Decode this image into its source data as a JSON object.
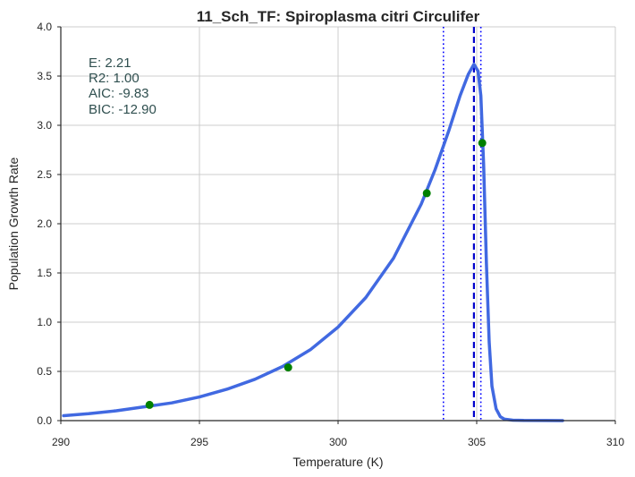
{
  "chart_data": {
    "type": "line",
    "title": "11_Sch_TF: Spiroplasma citri Circulifer",
    "xlabel": "Temperature (K)",
    "ylabel": "Population Growth Rate",
    "xlim": [
      290,
      310
    ],
    "ylim": [
      0.0,
      4.0
    ],
    "x_ticks": [
      290,
      295,
      300,
      305,
      310
    ],
    "x_tick_labels": [
      "290",
      "295",
      "300",
      "305",
      "310"
    ],
    "y_ticks": [
      0.0,
      0.5,
      1.0,
      1.5,
      2.0,
      2.5,
      3.0,
      3.5,
      4.0
    ],
    "y_tick_labels": [
      "0.0",
      "0.5",
      "1.0",
      "1.5",
      "2.0",
      "2.5",
      "3.0",
      "3.5",
      "4.0"
    ],
    "grid": true,
    "annotations": [
      "E:  2.21",
      "R2:  1.00",
      "AIC: -9.83",
      "BIC: -12.90"
    ],
    "series": [
      {
        "kind": "fitted-curve",
        "color": "#4169e1",
        "x": [
          290.1,
          291,
          292,
          293,
          294,
          295,
          296,
          297,
          298,
          299,
          300,
          301,
          302,
          303,
          303.5,
          304,
          304.4,
          304.7,
          304.9,
          305.05,
          305.15,
          305.25,
          305.35,
          305.45,
          305.55,
          305.7,
          305.85,
          306.0,
          306.3,
          306.7,
          307.5,
          308.1
        ],
        "y": [
          0.05,
          0.07,
          0.1,
          0.14,
          0.18,
          0.24,
          0.32,
          0.42,
          0.55,
          0.72,
          0.95,
          1.25,
          1.65,
          2.2,
          2.55,
          2.95,
          3.3,
          3.52,
          3.62,
          3.55,
          3.3,
          2.6,
          1.6,
          0.8,
          0.35,
          0.12,
          0.04,
          0.015,
          0.005,
          0.002,
          0.001,
          0.0
        ]
      },
      {
        "kind": "observed-points",
        "color": "#008000",
        "x": [
          293.2,
          298.2,
          303.2,
          305.2
        ],
        "y": [
          0.16,
          0.54,
          2.31,
          2.82
        ]
      }
    ],
    "vertical_lines": [
      {
        "x": 304.9,
        "style": "dashed",
        "color": "#0000cd"
      },
      {
        "x": 303.8,
        "style": "dotted",
        "color": "#0000ff"
      },
      {
        "x": 305.15,
        "style": "dotted",
        "color": "#0000ff"
      }
    ]
  }
}
